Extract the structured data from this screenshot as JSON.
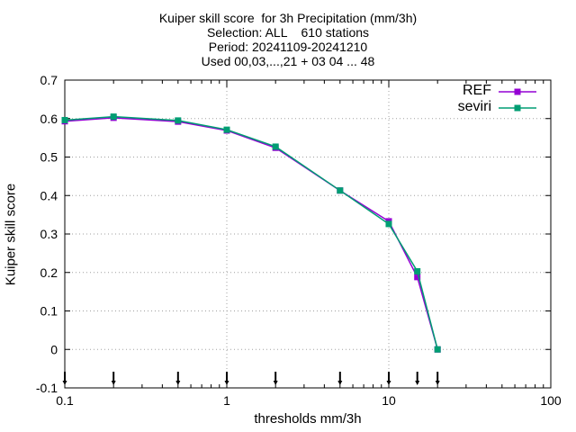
{
  "chart_data": {
    "type": "line",
    "title_lines": [
      "Kuiper skill score  for 3h Precipitation (mm/3h)",
      "Selection: ALL    610 stations",
      "Period: 20241109-20241210",
      "Used 00,03,...,21 + 03 04 ... 48"
    ],
    "xlabel": "thresholds mm/3h",
    "ylabel": "Kuiper skill score",
    "xscale": "log",
    "xlim": [
      0.1,
      100
    ],
    "ylim": [
      -0.1,
      0.7
    ],
    "grid": true,
    "legend_position": "top-right",
    "x_ticks": [
      0.1,
      1,
      10,
      100
    ],
    "x_tick_labels": [
      "0.1",
      "1",
      "10",
      "100"
    ],
    "y_ticks": [
      -0.1,
      0,
      0.1,
      0.2,
      0.3,
      0.4,
      0.5,
      0.6,
      0.7
    ],
    "y_tick_labels": [
      "-0.1",
      "0",
      "0.1",
      "0.2",
      "0.3",
      "0.4",
      "0.5",
      "0.6",
      "0.7"
    ],
    "x": [
      0.1,
      0.2,
      0.5,
      1,
      2,
      5,
      10,
      15,
      20
    ],
    "series": [
      {
        "name": "REF",
        "color": "#9400d3",
        "values": [
          0.593,
          0.602,
          0.592,
          0.569,
          0.524,
          0.413,
          0.333,
          0.188,
          0.0
        ]
      },
      {
        "name": "seviri",
        "color": "#009e73",
        "values": [
          0.596,
          0.605,
          0.595,
          0.571,
          0.527,
          0.413,
          0.326,
          0.203,
          0.0
        ]
      }
    ],
    "bottom_markers_x": [
      0.1,
      0.2,
      0.5,
      1,
      2,
      5,
      10,
      15,
      20
    ]
  }
}
